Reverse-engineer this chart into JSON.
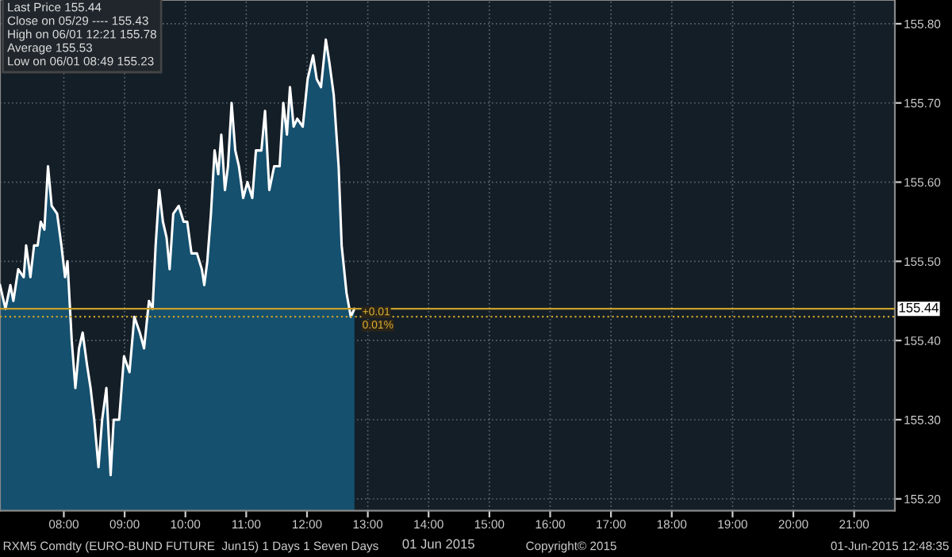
{
  "chart_data": {
    "type": "area",
    "xlabel": "01 Jun 2015",
    "x": [
      6.95,
      7.04,
      7.12,
      7.17,
      7.25,
      7.34,
      7.38,
      7.45,
      7.51,
      7.57,
      7.62,
      7.68,
      7.74,
      7.8,
      7.89,
      7.96,
      8.02,
      8.06,
      8.13,
      8.19,
      8.25,
      8.31,
      8.38,
      8.44,
      8.5,
      8.57,
      8.63,
      8.7,
      8.77,
      8.82,
      8.91,
      8.99,
      9.08,
      9.16,
      9.25,
      9.32,
      9.4,
      9.46,
      9.51,
      9.57,
      9.63,
      9.69,
      9.74,
      9.8,
      9.89,
      9.97,
      10.03,
      10.1,
      10.19,
      10.27,
      10.31,
      10.36,
      10.42,
      10.48,
      10.54,
      10.59,
      10.65,
      10.7,
      10.76,
      10.82,
      10.88,
      10.95,
      11.02,
      11.1,
      11.16,
      11.25,
      11.31,
      11.38,
      11.46,
      11.55,
      11.61,
      11.67,
      11.72,
      11.78,
      11.84,
      11.93,
      12.01,
      12.1,
      12.16,
      12.23,
      12.31,
      12.37,
      12.44,
      12.52,
      12.57,
      12.65,
      12.72,
      12.78
    ],
    "series": [
      {
        "color": "#ffffff",
        "values": [
          155.47,
          155.44,
          155.47,
          155.45,
          155.49,
          155.48,
          155.52,
          155.48,
          155.52,
          155.52,
          155.55,
          155.54,
          155.62,
          155.57,
          155.56,
          155.52,
          155.48,
          155.5,
          155.4,
          155.34,
          155.39,
          155.41,
          155.37,
          155.34,
          155.3,
          155.24,
          155.3,
          155.34,
          155.23,
          155.3,
          155.3,
          155.38,
          155.36,
          155.43,
          155.41,
          155.39,
          155.45,
          155.44,
          155.52,
          155.59,
          155.55,
          155.53,
          155.49,
          155.56,
          155.57,
          155.55,
          155.55,
          155.51,
          155.51,
          155.49,
          155.47,
          155.5,
          155.56,
          155.64,
          155.61,
          155.66,
          155.59,
          155.62,
          155.7,
          155.64,
          155.62,
          155.58,
          155.6,
          155.58,
          155.64,
          155.64,
          155.69,
          155.59,
          155.62,
          155.62,
          155.7,
          155.66,
          155.72,
          155.67,
          155.68,
          155.67,
          155.73,
          155.76,
          155.73,
          155.72,
          155.78,
          155.75,
          155.71,
          155.62,
          155.52,
          155.46,
          155.43,
          155.44
        ]
      }
    ],
    "xlim": [
      6.95,
      21.67
    ],
    "ylim": [
      155.185,
      155.83
    ],
    "xticks": [
      {
        "value": 8,
        "label": "08:00"
      },
      {
        "value": 9,
        "label": "09:00"
      },
      {
        "value": 10,
        "label": "10:00"
      },
      {
        "value": 11,
        "label": "11:00"
      },
      {
        "value": 12,
        "label": "12:00"
      },
      {
        "value": 13,
        "label": "13:00"
      },
      {
        "value": 14,
        "label": "14:00"
      },
      {
        "value": 15,
        "label": "15:00"
      },
      {
        "value": 16,
        "label": "16:00"
      },
      {
        "value": 17,
        "label": "17:00"
      },
      {
        "value": 18,
        "label": "18:00"
      },
      {
        "value": 19,
        "label": "19:00"
      },
      {
        "value": 20,
        "label": "20:00"
      },
      {
        "value": 21,
        "label": "21:00"
      }
    ],
    "yticks": [
      {
        "value": 155.2,
        "label": "155.20"
      },
      {
        "value": 155.3,
        "label": "155.30"
      },
      {
        "value": 155.4,
        "label": "155.40"
      },
      {
        "value": 155.5,
        "label": "155.50"
      },
      {
        "value": 155.6,
        "label": "155.60"
      },
      {
        "value": 155.7,
        "label": "155.70"
      },
      {
        "value": 155.8,
        "label": "155.80"
      }
    ],
    "ref_lines": [
      {
        "axis": "y",
        "value": 155.44,
        "label": "155.44",
        "color": "#c8a02a",
        "line_style": "solid"
      },
      {
        "axis": "y",
        "value": 155.43,
        "color": "#c8a02a",
        "line_style": "dotted"
      }
    ],
    "grid": true,
    "annotations": [
      "Last Price 155.44",
      "Close on 05/29 ---- 155.43",
      "High on 06/01 12:21 155.78",
      "Average 155.53",
      "Low on 06/01 08:49 155.23",
      "RXM5 Comdty (EURO-BUND FUTURE  Jun15) 1 Days 1 Seven Days",
      "Copyright© 2015",
      "01-Jun-2015 12:48:35",
      {
        "text": "+0.01",
        "x": 12.8,
        "y": 155.43
      },
      {
        "text": "0.01%",
        "x": 12.8,
        "y": 155.43
      }
    ]
  }
}
